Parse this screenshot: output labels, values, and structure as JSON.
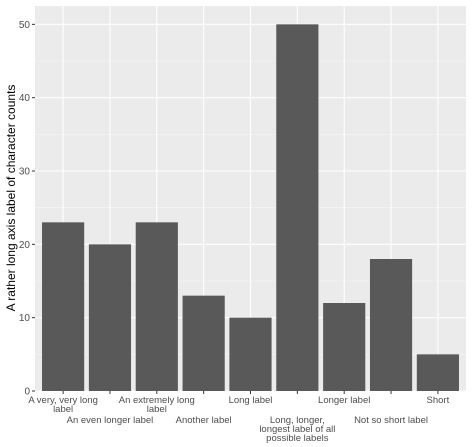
{
  "chart_data": {
    "type": "bar",
    "categories": [
      "A very, very long label",
      "An even longer label",
      "An extremely long label",
      "Another label",
      "Long label",
      "Long, longer, longest label of all possible labels",
      "Longer label",
      "Not so short label",
      "Short"
    ],
    "category_label_lines": [
      [
        "A very, very long",
        "label"
      ],
      [
        "An even longer label"
      ],
      [
        "An extremely long",
        "label"
      ],
      [
        "Another label"
      ],
      [
        "Long label"
      ],
      [
        "Long, longer,",
        "longest label of all",
        "possible labels"
      ],
      [
        "Longer label"
      ],
      [
        "Not so short label"
      ],
      [
        "Short"
      ]
    ],
    "values": [
      23,
      20,
      23,
      13,
      10,
      50,
      12,
      18,
      5
    ],
    "xlabel": "",
    "ylabel": "A rather long axis label of character counts",
    "ylim": [
      0,
      52.5
    ],
    "yticks": [
      0,
      10,
      20,
      30,
      40,
      50
    ],
    "grid": true,
    "colors": {
      "bar": "#595959",
      "panel": "#ebebeb",
      "grid_major": "#ffffff",
      "grid_minor": "#f5f5f5"
    }
  }
}
